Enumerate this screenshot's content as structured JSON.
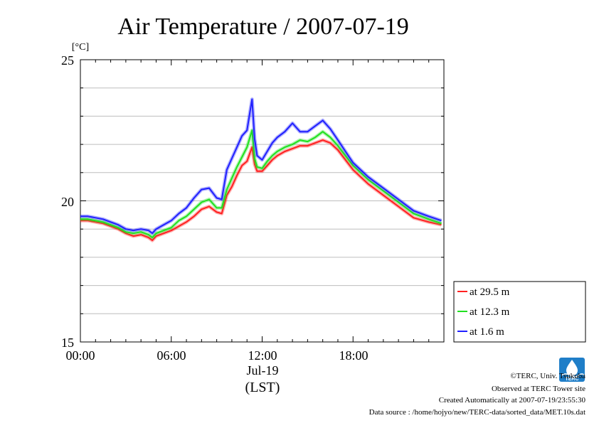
{
  "chart_data": {
    "type": "line",
    "title": "Air Temperature / 2007-07-19",
    "ylabel": "[°C]",
    "xlabel": "(LST)",
    "x_date_label": "Jul-19",
    "xlim": [
      "00:00",
      "24:00"
    ],
    "ylim": [
      15,
      25
    ],
    "yticks": [
      "15",
      "20",
      "25"
    ],
    "xticks": [
      "00:00",
      "06:00",
      "12:00",
      "18:00"
    ],
    "grid": true,
    "legend_position": "bottom-right, outside plot",
    "x": [
      "00:00",
      "00:30",
      "01:00",
      "01:30",
      "02:00",
      "02:30",
      "03:00",
      "03:30",
      "04:00",
      "04:30",
      "04:45",
      "05:00",
      "05:30",
      "06:00",
      "06:30",
      "07:00",
      "07:30",
      "08:00",
      "08:30",
      "09:00",
      "09:20",
      "09:40",
      "10:00",
      "10:20",
      "10:40",
      "11:00",
      "11:20",
      "11:30",
      "11:40",
      "12:00",
      "12:20",
      "12:40",
      "13:00",
      "13:30",
      "14:00",
      "14:30",
      "15:00",
      "15:30",
      "16:00",
      "16:30",
      "17:00",
      "17:30",
      "18:00",
      "19:00",
      "20:00",
      "21:00",
      "22:00",
      "23:00",
      "23:50"
    ],
    "series": [
      {
        "name": "at 29.5 m",
        "color": "#ff2020",
        "values": [
          19.3,
          19.3,
          19.25,
          19.2,
          19.1,
          19.0,
          18.85,
          18.75,
          18.8,
          18.7,
          18.6,
          18.75,
          18.85,
          18.95,
          19.1,
          19.25,
          19.45,
          19.7,
          19.8,
          19.6,
          19.55,
          20.2,
          20.5,
          20.9,
          21.25,
          21.4,
          21.9,
          21.3,
          21.05,
          21.05,
          21.25,
          21.45,
          21.6,
          21.75,
          21.85,
          21.95,
          21.95,
          22.05,
          22.15,
          22.05,
          21.8,
          21.45,
          21.1,
          20.6,
          20.2,
          19.8,
          19.4,
          19.25,
          19.15
        ]
      },
      {
        "name": "at 12.3 m",
        "color": "#20e020",
        "values": [
          19.35,
          19.35,
          19.3,
          19.25,
          19.15,
          19.05,
          18.9,
          18.85,
          18.9,
          18.8,
          18.7,
          18.85,
          18.95,
          19.05,
          19.3,
          19.45,
          19.7,
          19.95,
          20.05,
          19.75,
          19.75,
          20.4,
          20.8,
          21.2,
          21.55,
          21.9,
          22.5,
          21.5,
          21.2,
          21.15,
          21.4,
          21.6,
          21.75,
          21.9,
          22.0,
          22.15,
          22.1,
          22.25,
          22.45,
          22.25,
          21.95,
          21.6,
          21.25,
          20.75,
          20.35,
          19.95,
          19.55,
          19.35,
          19.2
        ]
      },
      {
        "name": "at 1.6 m",
        "color": "#2020ff",
        "values": [
          19.45,
          19.45,
          19.4,
          19.35,
          19.25,
          19.15,
          19.0,
          18.95,
          19.0,
          18.95,
          18.85,
          19.0,
          19.15,
          19.3,
          19.55,
          19.75,
          20.1,
          20.4,
          20.45,
          20.1,
          20.05,
          21.1,
          21.5,
          21.9,
          22.3,
          22.5,
          23.6,
          22.2,
          21.6,
          21.45,
          21.75,
          22.05,
          22.25,
          22.45,
          22.75,
          22.45,
          22.45,
          22.65,
          22.85,
          22.55,
          22.15,
          21.75,
          21.35,
          20.85,
          20.45,
          20.05,
          19.65,
          19.45,
          19.3
        ]
      }
    ]
  },
  "footer": {
    "line1": "©TERC, Univ. Tsukuba",
    "line2": "Observed at TERC Tower site",
    "line3": "Created Automatically at 2007-07-19/23:55:30",
    "line4": "Data source : /home/hojyo/new/TERC-data/sorted_data/MET.10s.dat",
    "logo_text": "TERC"
  }
}
